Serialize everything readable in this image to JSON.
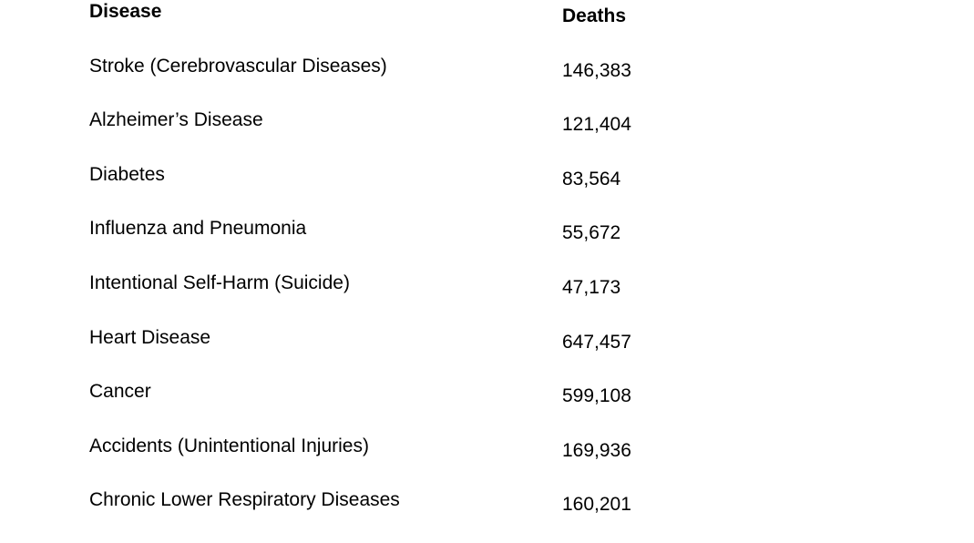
{
  "colors": {
    "background": "#ffffff",
    "text": "#000000"
  },
  "table": {
    "header": {
      "disease": "Disease",
      "deaths": "Deaths"
    },
    "rows": [
      {
        "disease": "Stroke (Cerebrovascular Diseases)",
        "deaths": "146,383"
      },
      {
        "disease": "Alzheimer’s Disease",
        "deaths": "121,404"
      },
      {
        "disease": "Diabetes",
        "deaths": "83,564"
      },
      {
        "disease": "Influenza and Pneumonia",
        "deaths": "55,672"
      },
      {
        "disease": "Intentional Self-Harm (Suicide)",
        "deaths": "47,173"
      },
      {
        "disease": "Heart Disease",
        "deaths": "647,457"
      },
      {
        "disease": "Cancer",
        "deaths": "599,108"
      },
      {
        "disease": "Accidents (Unintentional Injuries)",
        "deaths": "169,936"
      },
      {
        "disease": "Chronic Lower Respiratory Diseases",
        "deaths": "160,201"
      }
    ]
  },
  "chart_data": {
    "type": "table",
    "title": "",
    "columns": [
      "Disease",
      "Deaths"
    ],
    "rows": [
      [
        "Stroke (Cerebrovascular Diseases)",
        146383
      ],
      [
        "Alzheimer’s Disease",
        121404
      ],
      [
        "Diabetes",
        83564
      ],
      [
        "Influenza and Pneumonia",
        55672
      ],
      [
        "Intentional Self-Harm (Suicide)",
        47173
      ],
      [
        "Heart Disease",
        647457
      ],
      [
        "Cancer",
        599108
      ],
      [
        "Accidents (Unintentional Injuries)",
        169936
      ],
      [
        "Chronic Lower Respiratory Diseases",
        160201
      ]
    ],
    "layout": {
      "grid": false,
      "borders": false,
      "header_bold": true
    }
  }
}
